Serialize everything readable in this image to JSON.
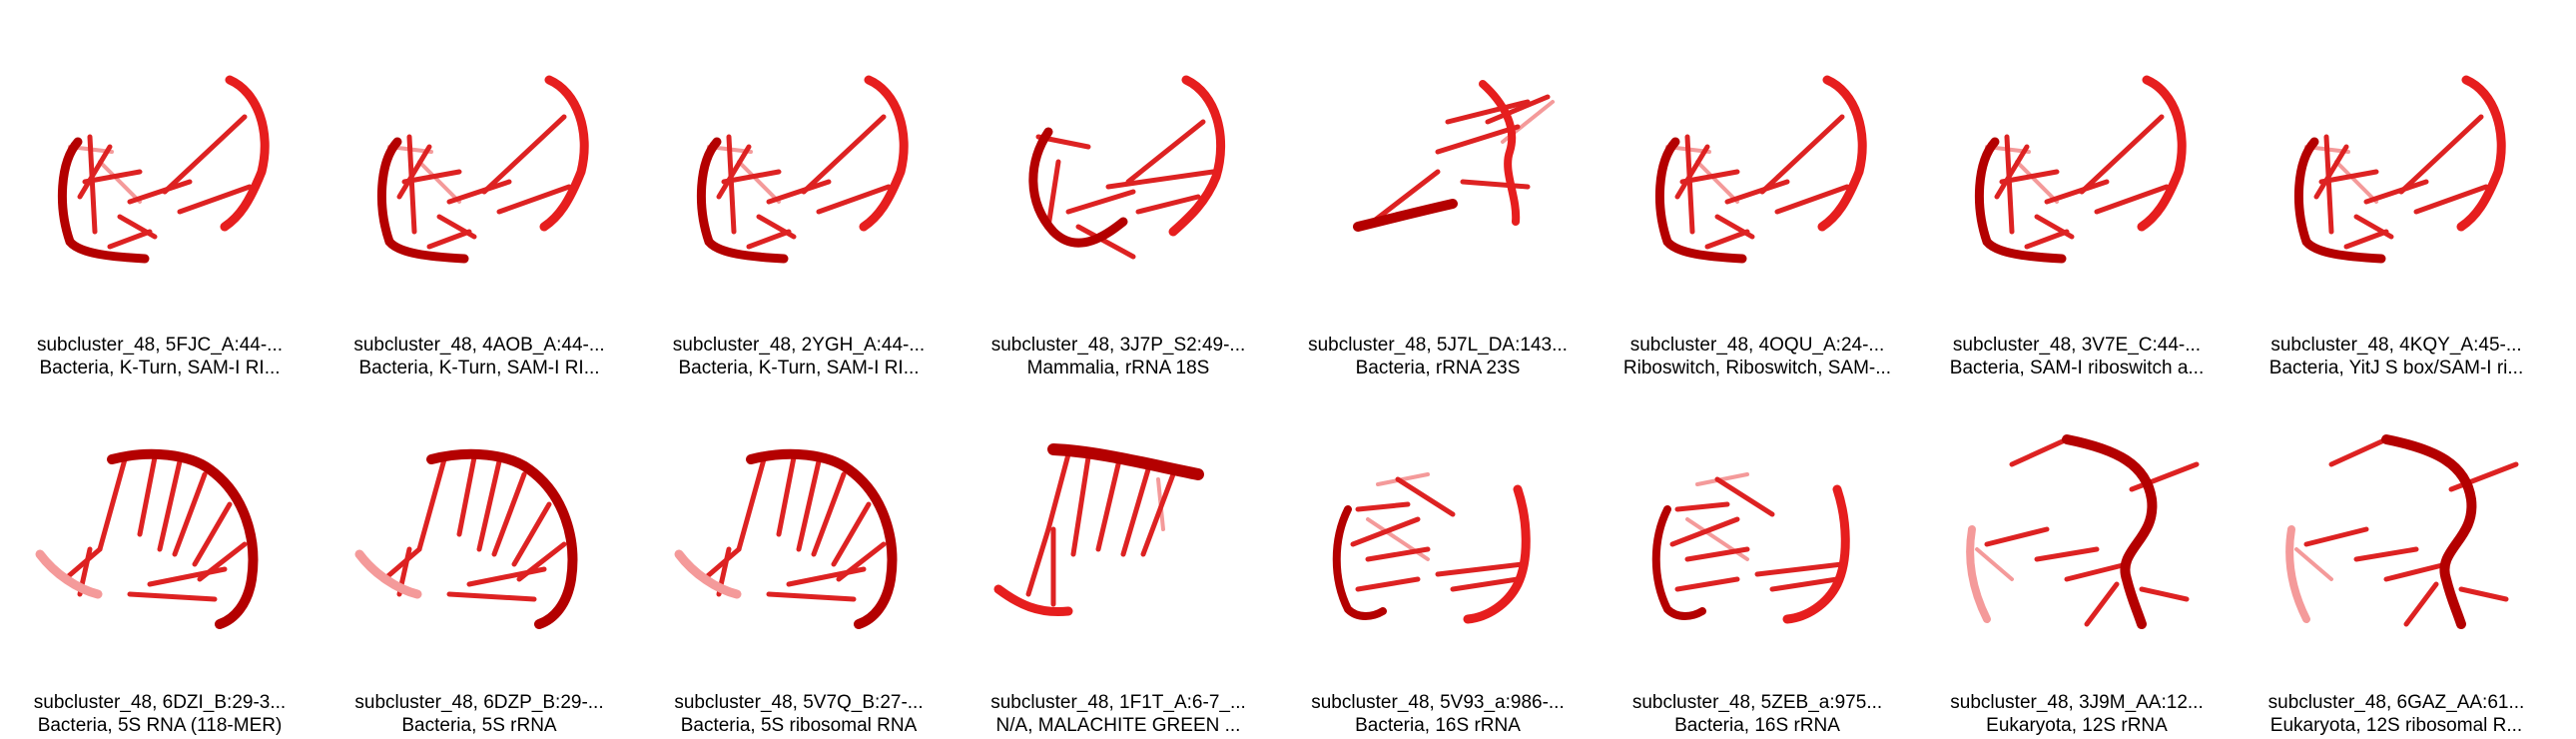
{
  "colors": {
    "strand_dark": "#b40000",
    "strand": "#e61e1e",
    "strand_light": "#f49a9a",
    "base": "#dd2222"
  },
  "tiles": [
    {
      "id": "subcluster_48, 5FJC_A:44-...",
      "desc": "Bacteria, K-Turn, SAM-I RI...",
      "shape": "a"
    },
    {
      "id": "subcluster_48, 4AOB_A:44-...",
      "desc": "Bacteria, K-Turn, SAM-I RI...",
      "shape": "a"
    },
    {
      "id": "subcluster_48, 2YGH_A:44-...",
      "desc": "Bacteria, K-Turn, SAM-I RI...",
      "shape": "a"
    },
    {
      "id": "subcluster_48, 3J7P_S2:49-...",
      "desc": "Mammalia, rRNA 18S",
      "shape": "b"
    },
    {
      "id": "subcluster_48, 5J7L_DA:143...",
      "desc": "Bacteria, rRNA 23S",
      "shape": "c"
    },
    {
      "id": "subcluster_48, 4OQU_A:24-...",
      "desc": "Riboswitch, Riboswitch, SAM-...",
      "shape": "a"
    },
    {
      "id": "subcluster_48, 3V7E_C:44-...",
      "desc": "Bacteria, SAM-I riboswitch a...",
      "shape": "a"
    },
    {
      "id": "subcluster_48, 4KQY_A:45-...",
      "desc": "Bacteria, YitJ S box/SAM-I ri...",
      "shape": "a"
    },
    {
      "id": "subcluster_48, 6DZI_B:29-3...",
      "desc": "Bacteria, 5S RNA (118-MER)",
      "shape": "d"
    },
    {
      "id": "subcluster_48, 6DZP_B:29-...",
      "desc": "Bacteria, 5S rRNA",
      "shape": "d"
    },
    {
      "id": "subcluster_48, 5V7Q_B:27-...",
      "desc": "Bacteria, 5S ribosomal RNA",
      "shape": "d"
    },
    {
      "id": "subcluster_48, 1F1T_A:6-7_...",
      "desc": "N/A, MALACHITE GREEN ...",
      "shape": "e"
    },
    {
      "id": "subcluster_48, 5V93_a:986-...",
      "desc": "Bacteria, 16S rRNA",
      "shape": "f"
    },
    {
      "id": "subcluster_48, 5ZEB_a:975...",
      "desc": "Bacteria, 16S rRNA",
      "shape": "f"
    },
    {
      "id": "subcluster_48, 3J9M_AA:12...",
      "desc": "Eukaryota, 12S rRNA",
      "shape": "g"
    },
    {
      "id": "subcluster_48, 6GAZ_AA:61...",
      "desc": "Eukaryota, 12S ribosomal R...",
      "shape": "g"
    }
  ]
}
